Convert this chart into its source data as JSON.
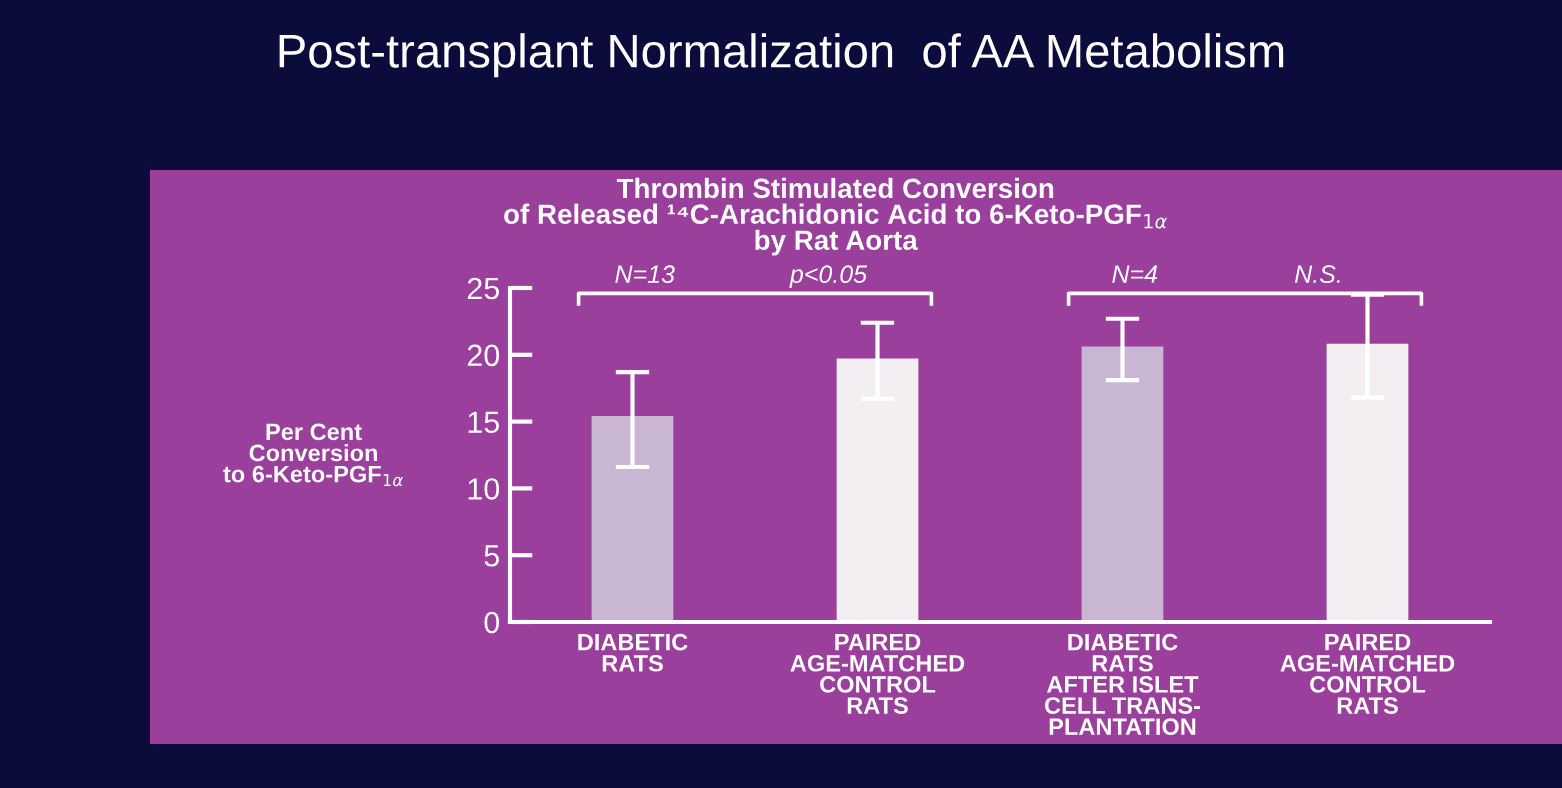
{
  "chart_data": {
    "type": "bar",
    "title": "Post-transplant Normalization  of AA Metabolism",
    "subtitle": "Thrombin Stimulated Conversion\nof Released ¹⁴C-Arachidonic Acid to 6-Keto-PGF$_{1α}$\nby Rat Aorta",
    "ylabel": "Per Cent\nConversion\nto 6-Keto-PGF$_{1α}$",
    "categories": [
      "DIABETIC\nRATS",
      "PAIRED\nAGE-MATCHED\nCONTROL\nRATS",
      "DIABETIC\nRATS\nAFTER ISLET\nCELL TRANS-\nPLANTATION",
      "PAIRED\nAGE-MATCHED\nCONTROL\nRATS"
    ],
    "values": [
      15.3,
      19.6,
      20.5,
      20.7
    ],
    "errors": [
      [
        11.6,
        18.7
      ],
      [
        16.7,
        22.4
      ],
      [
        18.1,
        22.7
      ],
      [
        16.8,
        24.5
      ]
    ],
    "colors": [
      "#c9b6d2",
      "#f2eef2",
      "#c9b6d2",
      "#f2eef2"
    ],
    "ylim": [
      0,
      25
    ],
    "yticks": [
      0,
      5,
      10,
      15,
      20,
      25
    ],
    "annotations": [
      "N=13",
      "p<0.05",
      "N=4",
      "N.S."
    ]
  }
}
